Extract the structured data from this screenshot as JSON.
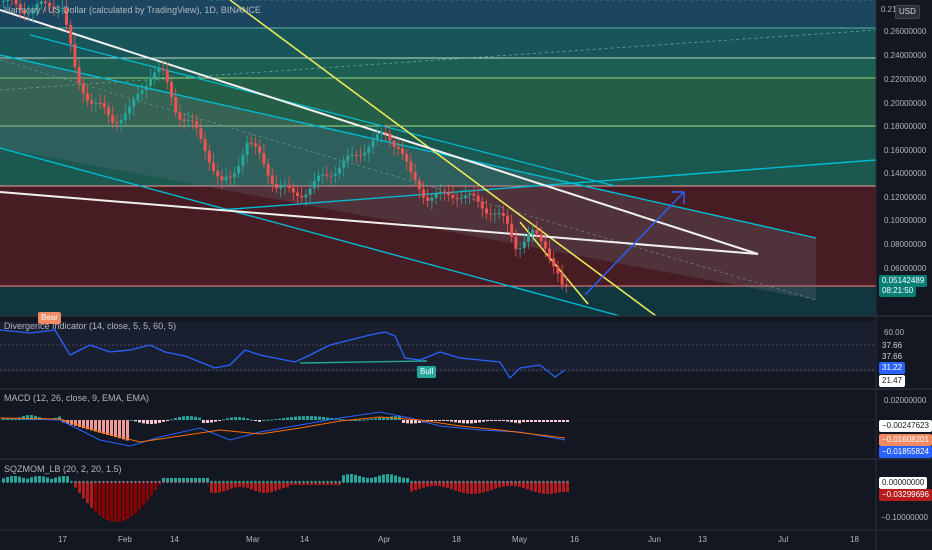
{
  "main": {
    "title": "Harmony / US Dollar (calculated by TradingView), 1D, BINANCE",
    "currency_badge": "USD",
    "axis": {
      "top_label": "0.21",
      "ticks": [
        "0.26000000",
        "0.24000000",
        "0.22000000",
        "0.20000000",
        "0.18000000",
        "0.16000000",
        "0.14000000",
        "0.12000000",
        "0.10000000",
        "0.08000000",
        "0.06000000"
      ],
      "last_price": "0.05142489",
      "countdown": "08:21:50"
    }
  },
  "divergence": {
    "title": "Divergence Indicator (14, close, 5, 5, 60, 5)",
    "bear_label": "Bear",
    "bull_label": "Bull",
    "axis": {
      "top": "60.00",
      "v1": "37.66",
      "v2": "37.66",
      "current": "31.22",
      "v3": "21.47"
    }
  },
  "macd": {
    "title": "MACD (12, 26, close, 9, EMA, EMA)",
    "axis": {
      "top": "0.02000000",
      "hist": "−0.00247623",
      "signal": "−0.01608201",
      "macd": "−0.01855824"
    }
  },
  "sqzmom": {
    "title": "SQZMOM_LB (20, 2, 20, 1.5)",
    "axis": {
      "zero": "0.00000000",
      "value": "−0.03299696",
      "bottom": "−0.10000000"
    }
  },
  "x_axis": {
    "ticks": [
      "17",
      "Feb",
      "14",
      "Mar",
      "14",
      "Apr",
      "18",
      "May",
      "16",
      "Jun",
      "13",
      "Jul",
      "18"
    ]
  },
  "colors": {
    "background": "#131722",
    "up_candle": "#26a69a",
    "down_candle": "#ef5350",
    "rsi_line": "#2962ff",
    "channel": "#00bcd4",
    "trend_yellow": "#e8e85a",
    "trend_white": "#ffffff",
    "target_arrow": "#2962ff"
  }
}
